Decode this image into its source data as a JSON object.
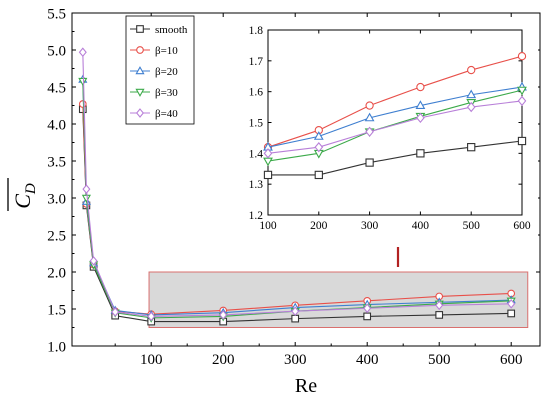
{
  "chart_data": [
    {
      "type": "line",
      "xlabel": "Re",
      "ylabel": "C_D",
      "xlim": [
        -10,
        640
      ],
      "ylim": [
        1.0,
        5.5
      ],
      "x_ticks": [
        "100",
        "200",
        "300",
        "400",
        "500",
        "600"
      ],
      "y_ticks": [
        "1.0",
        "1.5",
        "2.0",
        "2.5",
        "3.0",
        "3.5",
        "4.0",
        "4.5",
        "5.0",
        "5.5"
      ],
      "legend": "top-left inside plot",
      "x": [
        5,
        10,
        20,
        50,
        100,
        200,
        300,
        400,
        500,
        600
      ],
      "series": [
        {
          "name": "smooth",
          "color": "#333333",
          "marker": "square",
          "values": [
            4.2,
            2.9,
            2.07,
            1.41,
            1.33,
            1.33,
            1.37,
            1.4,
            1.42,
            1.44
          ]
        },
        {
          "name": "β=10",
          "color": "#e8504a",
          "marker": "circle",
          "values": [
            4.27,
            2.92,
            2.1,
            1.47,
            1.43,
            1.48,
            1.55,
            1.61,
            1.67,
            1.71
          ]
        },
        {
          "name": "β=20",
          "color": "#3f7fd0",
          "marker": "triangle-up",
          "values": [
            4.6,
            2.95,
            2.12,
            1.48,
            1.42,
            1.45,
            1.52,
            1.56,
            1.59,
            1.62
          ]
        },
        {
          "name": "β=30",
          "color": "#3caa4a",
          "marker": "triangle-down",
          "values": [
            4.58,
            3.0,
            2.1,
            1.45,
            1.38,
            1.4,
            1.47,
            1.52,
            1.57,
            1.61
          ]
        },
        {
          "name": "β=40",
          "color": "#b87fd8",
          "marker": "diamond",
          "values": [
            4.97,
            3.12,
            2.15,
            1.46,
            1.4,
            1.42,
            1.47,
            1.51,
            1.55,
            1.57
          ]
        }
      ],
      "highlight_region": {
        "x": [
          100,
          620
        ],
        "y": [
          1.25,
          2.0
        ],
        "fill": "#d9d9d9",
        "stroke": "#d9706e"
      },
      "arrow_color": "#b22222"
    },
    {
      "type": "line",
      "role": "inset",
      "xlim": [
        100,
        600
      ],
      "ylim": [
        1.2,
        1.8
      ],
      "x_ticks": [
        "100",
        "200",
        "300",
        "400",
        "500",
        "600"
      ],
      "y_ticks": [
        "1.2",
        "1.3",
        "1.4",
        "1.5",
        "1.6",
        "1.7",
        "1.8"
      ],
      "x": [
        100,
        200,
        300,
        400,
        500,
        600
      ],
      "series": [
        {
          "name": "smooth",
          "color": "#333333",
          "marker": "square",
          "values": [
            1.33,
            1.33,
            1.37,
            1.4,
            1.42,
            1.44
          ]
        },
        {
          "name": "β=10",
          "color": "#e8504a",
          "marker": "circle",
          "values": [
            1.42,
            1.475,
            1.555,
            1.615,
            1.67,
            1.715
          ]
        },
        {
          "name": "β=20",
          "color": "#3f7fd0",
          "marker": "triangle-up",
          "values": [
            1.42,
            1.455,
            1.515,
            1.555,
            1.59,
            1.615
          ]
        },
        {
          "name": "β=30",
          "color": "#3caa4a",
          "marker": "triangle-down",
          "values": [
            1.375,
            1.4,
            1.47,
            1.52,
            1.565,
            1.605
          ]
        },
        {
          "name": "β=40",
          "color": "#b87fd8",
          "marker": "diamond",
          "values": [
            1.4,
            1.42,
            1.47,
            1.515,
            1.55,
            1.57
          ]
        }
      ]
    }
  ]
}
